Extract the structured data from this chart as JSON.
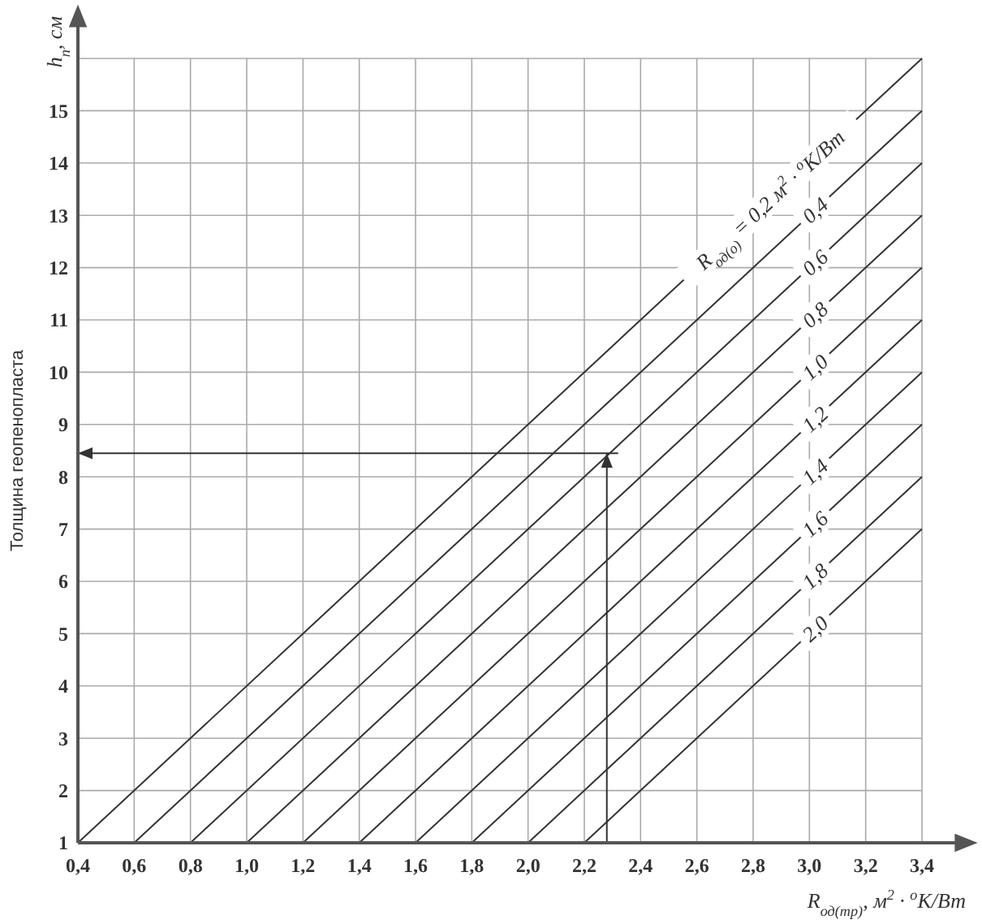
{
  "chart_data": {
    "type": "line",
    "xlabel": "R$_{од(тр)}$, м$^{2}$ · $^{о}$K/Вт",
    "ylabel": "Толщина геопенопласта",
    "annotations": [
      "h$_{п}$, см"
    ],
    "xlim": [
      0.4,
      3.4
    ],
    "ylim": [
      1,
      16
    ],
    "xticks": [
      {
        "value": 0.4,
        "label": "0,4"
      },
      {
        "value": 0.6,
        "label": "0,6"
      },
      {
        "value": 0.8,
        "label": "0,8"
      },
      {
        "value": 1.0,
        "label": "1,0"
      },
      {
        "value": 1.2,
        "label": "1,2"
      },
      {
        "value": 1.4,
        "label": "1,4"
      },
      {
        "value": 1.6,
        "label": "1,6"
      },
      {
        "value": 1.8,
        "label": "1,8"
      },
      {
        "value": 2.0,
        "label": "2,0"
      },
      {
        "value": 2.2,
        "label": "2,2"
      },
      {
        "value": 2.4,
        "label": "2,4"
      },
      {
        "value": 2.6,
        "label": "2,6"
      },
      {
        "value": 2.8,
        "label": "2,8"
      },
      {
        "value": 3.0,
        "label": "3,0"
      },
      {
        "value": 3.2,
        "label": "3,2"
      },
      {
        "value": 3.4,
        "label": "3,4"
      }
    ],
    "yticks": [
      1,
      2,
      3,
      4,
      5,
      6,
      7,
      8,
      9,
      10,
      11,
      12,
      13,
      14,
      15,
      {
        "value": 16,
        "label": null
      }
    ],
    "grid": true,
    "marker": "none",
    "line_style": "solid",
    "series": [
      {
        "name": "R$_{од(о)}$ = 0,2 м$^{2}$ · $^{о}$K/Вт",
        "color": "#333333",
        "x": [
          0.4,
          3.4
        ],
        "values": [
          1,
          16
        ]
      },
      {
        "name": "0,4",
        "color": "#333333",
        "x": [
          0.6,
          3.4
        ],
        "values": [
          1,
          15
        ]
      },
      {
        "name": "0,6",
        "color": "#333333",
        "x": [
          0.8,
          3.4
        ],
        "values": [
          1,
          14
        ]
      },
      {
        "name": "0,8",
        "color": "#333333",
        "x": [
          1.0,
          3.4
        ],
        "values": [
          1,
          13
        ]
      },
      {
        "name": "1,0",
        "color": "#333333",
        "x": [
          1.2,
          3.4
        ],
        "values": [
          1,
          12
        ]
      },
      {
        "name": "1,2",
        "color": "#333333",
        "x": [
          1.4,
          3.4
        ],
        "values": [
          1,
          11
        ]
      },
      {
        "name": "1,4",
        "color": "#333333",
        "x": [
          1.6,
          3.4
        ],
        "values": [
          1,
          10
        ]
      },
      {
        "name": "1,6",
        "color": "#333333",
        "x": [
          1.8,
          3.4
        ],
        "values": [
          1,
          9
        ]
      },
      {
        "name": "1,8",
        "color": "#333333",
        "x": [
          2.0,
          3.4
        ],
        "values": [
          1,
          8
        ]
      },
      {
        "name": "2,0",
        "color": "#333333",
        "x": [
          2.2,
          3.4
        ],
        "values": [
          1,
          7
        ]
      },
      {
        "color": "#333333",
        "x": [
          2.28,
          2.28
        ],
        "values": [
          1,
          8.45
        ]
      },
      {
        "color": "#333333",
        "x": [
          2.32,
          0.4
        ],
        "values": [
          8.45,
          8.45
        ]
      }
    ]
  }
}
